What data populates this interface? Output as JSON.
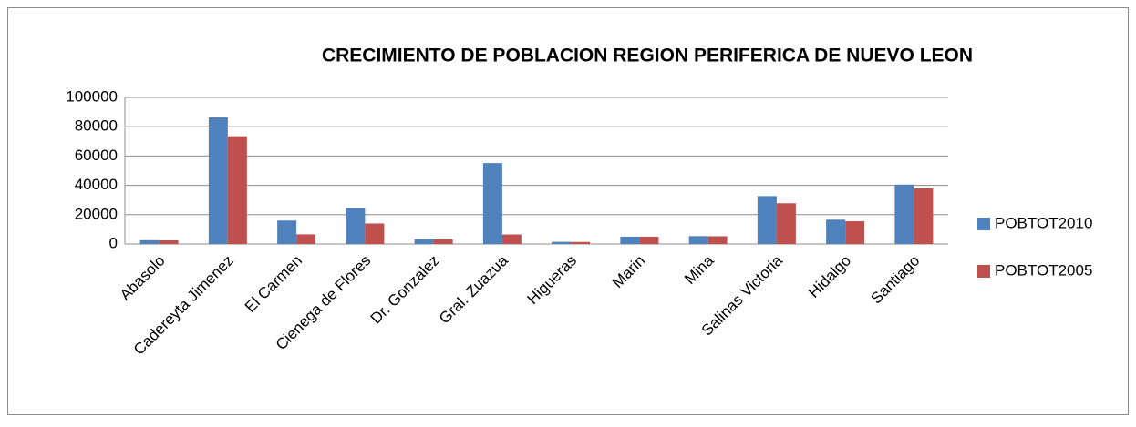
{
  "chart_data": {
    "type": "bar",
    "title": "CRECIMIENTO DE POBLACION REGION PERIFERICA DE NUEVO LEON",
    "categories": [
      "Abasolo",
      "Cadereyta Jimenez",
      "El Carmen",
      "Cienega de Flores",
      "Dr. Gonzalez",
      "Gral. Zuazua",
      "Higueras",
      "Marin",
      "Mina",
      "Salinas Victoria",
      "Hidalgo",
      "Santiago"
    ],
    "series": [
      {
        "name": "POBTOT2010",
        "color": "#4f81bd",
        "values": [
          2600,
          86400,
          16000,
          24500,
          3200,
          55200,
          1500,
          5000,
          5400,
          32700,
          16600,
          40500
        ]
      },
      {
        "name": "POBTOT2005",
        "color": "#c0504d",
        "values": [
          2500,
          73500,
          6600,
          14000,
          3100,
          6500,
          1400,
          5000,
          5300,
          27800,
          15500,
          37900
        ]
      }
    ],
    "ylim": [
      0,
      100000
    ],
    "yticks": [
      0,
      20000,
      40000,
      60000,
      80000,
      100000
    ],
    "grid": true,
    "legend": "right"
  }
}
